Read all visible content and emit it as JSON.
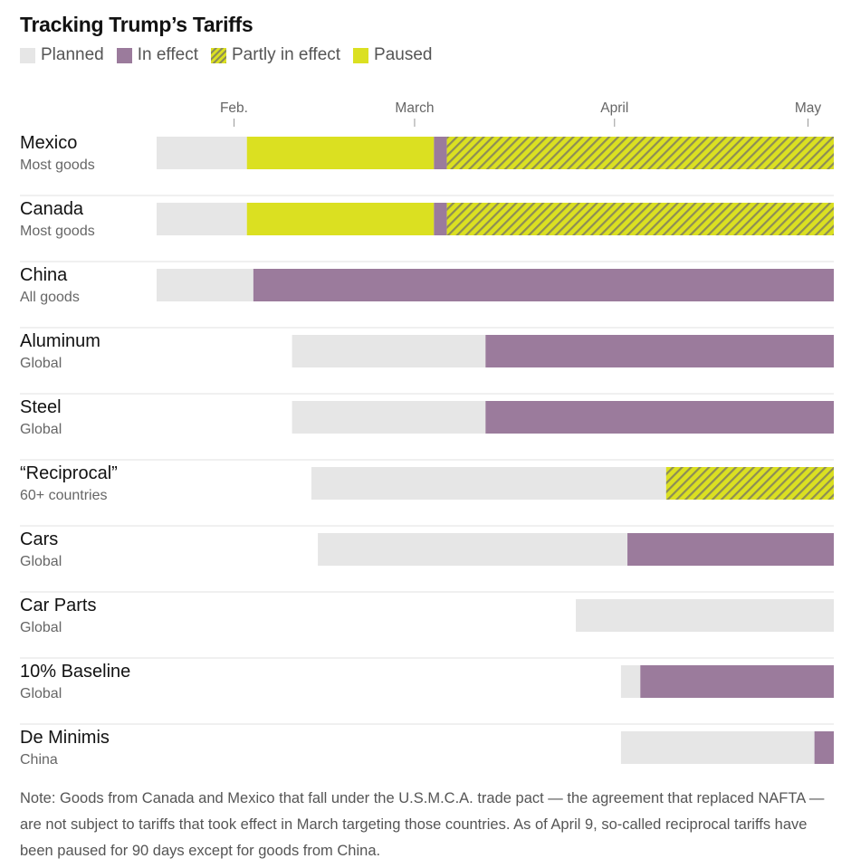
{
  "chart_data": {
    "type": "timeline",
    "title": "Tracking Trump’s Tariffs",
    "legend": [
      {
        "key": "planned",
        "label": "Planned",
        "color": "#e6e6e6"
      },
      {
        "key": "effect",
        "label": "In effect",
        "color": "#9b7b9c"
      },
      {
        "key": "partly",
        "label": "Partly in effect",
        "color": "#dbe021",
        "hatch": "#8d8d56"
      },
      {
        "key": "paused",
        "label": "Paused",
        "color": "#dbe021"
      }
    ],
    "x_axis": {
      "unit": "day of 2025",
      "domain": [
        20,
        125
      ],
      "ticks": [
        {
          "label": "Feb.",
          "day": 32
        },
        {
          "label": "March",
          "day": 60
        },
        {
          "label": "April",
          "day": 91
        },
        {
          "label": "May",
          "day": 121
        }
      ]
    },
    "rows": [
      {
        "name": "Mexico",
        "subtitle": "Most goods",
        "segments": [
          {
            "status": "planned",
            "start": 20,
            "end": 34
          },
          {
            "status": "paused",
            "start": 34,
            "end": 63
          },
          {
            "status": "effect",
            "start": 63,
            "end": 65
          },
          {
            "status": "partly",
            "start": 65,
            "end": 125
          }
        ]
      },
      {
        "name": "Canada",
        "subtitle": "Most goods",
        "segments": [
          {
            "status": "planned",
            "start": 20,
            "end": 34
          },
          {
            "status": "paused",
            "start": 34,
            "end": 63
          },
          {
            "status": "effect",
            "start": 63,
            "end": 65
          },
          {
            "status": "partly",
            "start": 65,
            "end": 125
          }
        ]
      },
      {
        "name": "China",
        "subtitle": "All goods",
        "segments": [
          {
            "status": "planned",
            "start": 20,
            "end": 35
          },
          {
            "status": "effect",
            "start": 35,
            "end": 125
          }
        ]
      },
      {
        "name": "Aluminum",
        "subtitle": "Global",
        "segments": [
          {
            "status": "planned",
            "start": 41,
            "end": 71
          },
          {
            "status": "effect",
            "start": 71,
            "end": 125
          }
        ]
      },
      {
        "name": "Steel",
        "subtitle": "Global",
        "segments": [
          {
            "status": "planned",
            "start": 41,
            "end": 71
          },
          {
            "status": "effect",
            "start": 71,
            "end": 125
          }
        ]
      },
      {
        "name": "“Reciprocal”",
        "subtitle": "60+ countries",
        "segments": [
          {
            "status": "planned",
            "start": 44,
            "end": 99
          },
          {
            "status": "partly",
            "start": 99,
            "end": 125
          }
        ]
      },
      {
        "name": "Cars",
        "subtitle": "Global",
        "segments": [
          {
            "status": "planned",
            "start": 45,
            "end": 93
          },
          {
            "status": "effect",
            "start": 93,
            "end": 125
          }
        ]
      },
      {
        "name": "Car Parts",
        "subtitle": "Global",
        "segments": [
          {
            "status": "planned",
            "start": 85,
            "end": 125
          }
        ]
      },
      {
        "name": "10% Baseline",
        "subtitle": "Global",
        "segments": [
          {
            "status": "planned",
            "start": 92,
            "end": 95
          },
          {
            "status": "effect",
            "start": 95,
            "end": 125
          }
        ]
      },
      {
        "name": "De Minimis",
        "subtitle": "China",
        "segments": [
          {
            "status": "planned",
            "start": 92,
            "end": 122
          },
          {
            "status": "effect",
            "start": 122,
            "end": 125
          }
        ]
      }
    ]
  },
  "note": "Note: Goods from Canada and Mexico that fall under the U.S.M.C.A. trade pact — the agreement that replaced NAFTA — are not subject to tariffs that took effect in March targeting those countries. As of April 9, so-called reciprocal tariffs have been paused for 90 days except for goods from China."
}
